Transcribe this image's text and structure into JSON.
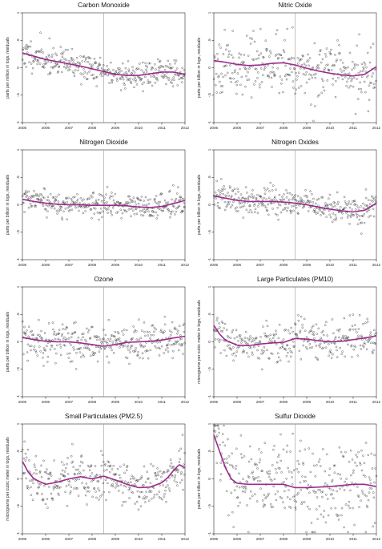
{
  "chart_data": [
    {
      "type": "scatter",
      "title": "Carbon Monoxide",
      "ylabel": "parts per million in logs, residuals",
      "xlabel": "",
      "xlim": [
        2005,
        2012
      ],
      "ylim": [
        -1,
        1
      ],
      "x_ticks": [
        "2005",
        "2006",
        "2007",
        "2008",
        "2009",
        "2010",
        "2011",
        "2012"
      ],
      "y_ticks": [
        "-1",
        "-.5",
        "0",
        ".5",
        "1"
      ],
      "vline_x": 2008.5,
      "fit_color": "#9b2a8c",
      "series": [
        {
          "name": "",
          "kind": "fitted-curve",
          "x": [
            2005.0,
            2005.5,
            2006.0,
            2006.5,
            2007.0,
            2007.5,
            2008.0,
            2008.5,
            2009.0,
            2009.5,
            2010.0,
            2010.5,
            2011.0,
            2011.5,
            2012.0
          ],
          "y": [
            0.27,
            0.21,
            0.15,
            0.11,
            0.07,
            0.03,
            -0.02,
            -0.07,
            -0.12,
            -0.14,
            -0.14,
            -0.11,
            -0.08,
            -0.08,
            -0.12
          ]
        }
      ],
      "scatter": {
        "count": 360,
        "spread": 0.13,
        "seed": 11
      }
    },
    {
      "type": "scatter",
      "title": "Nitric Oxide",
      "ylabel": "parts per billion in logs, residuals",
      "xlabel": "",
      "xlim": [
        2005,
        2012
      ],
      "ylim": [
        -1,
        1
      ],
      "x_ticks": [
        "2005",
        "2006",
        "2007",
        "2008",
        "2009",
        "2010",
        "2011",
        "2012"
      ],
      "y_ticks": [
        "-1",
        "-.5",
        "0",
        ".5",
        "1"
      ],
      "vline_x": 2008.5,
      "fit_color": "#9b2a8c",
      "series": [
        {
          "name": "",
          "kind": "fitted-curve",
          "x": [
            2005.0,
            2005.5,
            2006.0,
            2006.5,
            2007.0,
            2007.5,
            2008.0,
            2008.5,
            2009.0,
            2009.5,
            2010.0,
            2010.5,
            2011.0,
            2011.5,
            2012.0
          ],
          "y": [
            0.13,
            0.1,
            0.06,
            0.04,
            0.05,
            0.08,
            0.09,
            0.05,
            -0.01,
            -0.06,
            -0.1,
            -0.13,
            -0.15,
            -0.12,
            0.02
          ]
        }
      ],
      "scatter": {
        "count": 340,
        "spread": 0.26,
        "seed": 23
      }
    },
    {
      "type": "scatter",
      "title": "Nitrogen Dioxide",
      "ylabel": "parts per billion in logs, residuals",
      "xlabel": "",
      "xlim": [
        2005,
        2012
      ],
      "ylim": [
        -1,
        1
      ],
      "x_ticks": [
        "2005",
        "2006",
        "2007",
        "2008",
        "2009",
        "2010",
        "2011",
        "2012"
      ],
      "y_ticks": [
        "-1",
        "-.5",
        "0",
        ".5",
        "1"
      ],
      "vline_x": 2008.5,
      "fit_color": "#9b2a8c",
      "series": [
        {
          "name": "",
          "kind": "fitted-curve",
          "x": [
            2005.0,
            2005.5,
            2006.0,
            2006.5,
            2007.0,
            2007.5,
            2008.0,
            2008.5,
            2009.0,
            2009.5,
            2010.0,
            2010.5,
            2011.0,
            2011.5,
            2012.0
          ],
          "y": [
            0.1,
            0.06,
            0.03,
            0.01,
            0.0,
            0.0,
            -0.01,
            -0.01,
            -0.01,
            -0.02,
            -0.04,
            -0.05,
            -0.03,
            0.02,
            0.08
          ]
        }
      ],
      "scatter": {
        "count": 360,
        "spread": 0.11,
        "seed": 37
      }
    },
    {
      "type": "scatter",
      "title": "Nitrogen Oxides",
      "ylabel": "parts per billion in logs, residuals",
      "xlabel": "",
      "xlim": [
        2005,
        2012
      ],
      "ylim": [
        -1,
        1
      ],
      "x_ticks": [
        "2005",
        "2006",
        "2007",
        "2008",
        "2009",
        "2010",
        "2011",
        "2012"
      ],
      "y_ticks": [
        "-1",
        "-.5",
        "0",
        ".5",
        "1"
      ],
      "vline_x": 2008.5,
      "fit_color": "#9b2a8c",
      "series": [
        {
          "name": "",
          "kind": "fitted-curve",
          "x": [
            2005.0,
            2005.5,
            2006.0,
            2006.5,
            2007.0,
            2007.5,
            2008.0,
            2008.5,
            2009.0,
            2009.5,
            2010.0,
            2010.5,
            2011.0,
            2011.5,
            2012.0
          ],
          "y": [
            0.16,
            0.12,
            0.08,
            0.06,
            0.06,
            0.06,
            0.05,
            0.03,
            0.0,
            -0.04,
            -0.08,
            -0.11,
            -0.13,
            -0.1,
            0.03
          ]
        }
      ],
      "scatter": {
        "count": 360,
        "spread": 0.13,
        "seed": 41
      }
    },
    {
      "type": "scatter",
      "title": "Ozone",
      "ylabel": "parts per billion in logs, residuals",
      "xlabel": "",
      "xlim": [
        2005,
        2012
      ],
      "ylim": [
        -1,
        1
      ],
      "x_ticks": [
        "2005",
        "2006",
        "2007",
        "2008",
        "2009",
        "2010",
        "2011",
        "2012"
      ],
      "y_ticks": [
        "-1",
        "-.5",
        "0",
        ".5",
        "1"
      ],
      "vline_x": 2008.5,
      "fit_color": "#9b2a8c",
      "series": [
        {
          "name": "",
          "kind": "fitted-curve",
          "x": [
            2005.0,
            2005.5,
            2006.0,
            2006.5,
            2007.0,
            2007.5,
            2008.0,
            2008.5,
            2009.0,
            2009.5,
            2010.0,
            2010.5,
            2011.0,
            2011.5,
            2012.0
          ],
          "y": [
            0.08,
            0.04,
            0.01,
            0.0,
            0.0,
            -0.02,
            -0.05,
            -0.08,
            -0.05,
            -0.01,
            0.0,
            0.01,
            0.03,
            0.07,
            0.1
          ]
        }
      ],
      "scatter": {
        "count": 350,
        "spread": 0.17,
        "seed": 53
      }
    },
    {
      "type": "scatter",
      "title": "Large Particulates (PM10)",
      "ylabel": "micrograms per cubic meter in logs, residuals",
      "xlabel": "",
      "xlim": [
        2005,
        2012
      ],
      "ylim": [
        -1,
        1
      ],
      "x_ticks": [
        "2005",
        "2006",
        "2007",
        "2008",
        "2009",
        "2010",
        "2011",
        "2012"
      ],
      "y_ticks": [
        "-1",
        "-.5",
        "0",
        ".5",
        "1"
      ],
      "vline_x": 2008.5,
      "fit_color": "#9b2a8c",
      "series": [
        {
          "name": "",
          "kind": "fitted-curve",
          "x": [
            2005.0,
            2005.25,
            2005.5,
            2006.0,
            2006.5,
            2007.0,
            2007.5,
            2008.0,
            2008.5,
            2009.0,
            2009.5,
            2010.0,
            2010.5,
            2011.0,
            2011.5,
            2012.0
          ],
          "y": [
            0.3,
            0.14,
            0.03,
            -0.06,
            -0.07,
            -0.04,
            -0.02,
            -0.01,
            0.06,
            0.05,
            0.02,
            0.0,
            0.01,
            0.04,
            0.07,
            0.11
          ]
        }
      ],
      "scatter": {
        "count": 330,
        "spread": 0.16,
        "seed": 67
      }
    },
    {
      "type": "scatter",
      "title": "Small Particulates (PM2.5)",
      "ylabel": "micrograms per cubic meter in logs, residuals",
      "xlabel": "",
      "xlim": [
        2005,
        2012
      ],
      "ylim": [
        -1,
        1
      ],
      "x_ticks": [
        "2005",
        "2006",
        "2007",
        "2008",
        "2009",
        "2010",
        "2011",
        "2012"
      ],
      "y_ticks": [
        "-1",
        "-.5",
        "0",
        ".5",
        "1"
      ],
      "vline_x": 2008.5,
      "fit_color": "#9b2a8c",
      "series": [
        {
          "name": "",
          "kind": "fitted-curve",
          "x": [
            2005.0,
            2005.25,
            2005.5,
            2006.0,
            2006.5,
            2007.0,
            2007.5,
            2008.0,
            2008.5,
            2009.0,
            2009.5,
            2010.0,
            2010.5,
            2011.0,
            2011.25,
            2011.5,
            2011.75,
            2012.0
          ],
          "y": [
            0.32,
            0.12,
            0.0,
            -0.1,
            -0.06,
            0.0,
            0.04,
            0.0,
            0.05,
            -0.02,
            -0.1,
            -0.16,
            -0.15,
            -0.07,
            0.02,
            0.15,
            0.26,
            0.2
          ]
        }
      ],
      "scatter": {
        "count": 360,
        "spread": 0.2,
        "seed": 79
      }
    },
    {
      "type": "scatter",
      "title": "Sulfur Dioxide",
      "ylabel": "parts per billion in logs, residuals",
      "xlabel": "",
      "xlim": [
        2005,
        2012
      ],
      "ylim": [
        -1,
        1
      ],
      "x_ticks": [
        "2005",
        "2006",
        "2007",
        "2008",
        "2009",
        "2010",
        "2011",
        "2012"
      ],
      "y_ticks": [
        "-1",
        "-.5",
        "0",
        ".5",
        "1"
      ],
      "vline_x": 2008.5,
      "fit_color": "#9b2a8c",
      "series": [
        {
          "name": "",
          "kind": "fitted-curve",
          "x": [
            2005.0,
            2005.25,
            2005.5,
            2005.75,
            2006.0,
            2006.5,
            2007.0,
            2007.5,
            2008.0,
            2008.5,
            2009.0,
            2009.5,
            2010.0,
            2010.5,
            2011.0,
            2011.5,
            2012.0
          ],
          "y": [
            0.8,
            0.5,
            0.2,
            0.0,
            -0.08,
            -0.1,
            -0.1,
            -0.1,
            -0.1,
            -0.16,
            -0.16,
            -0.15,
            -0.14,
            -0.12,
            -0.1,
            -0.1,
            -0.14
          ]
        }
      ],
      "scatter": {
        "count": 340,
        "spread": 0.42,
        "seed": 97
      }
    }
  ]
}
